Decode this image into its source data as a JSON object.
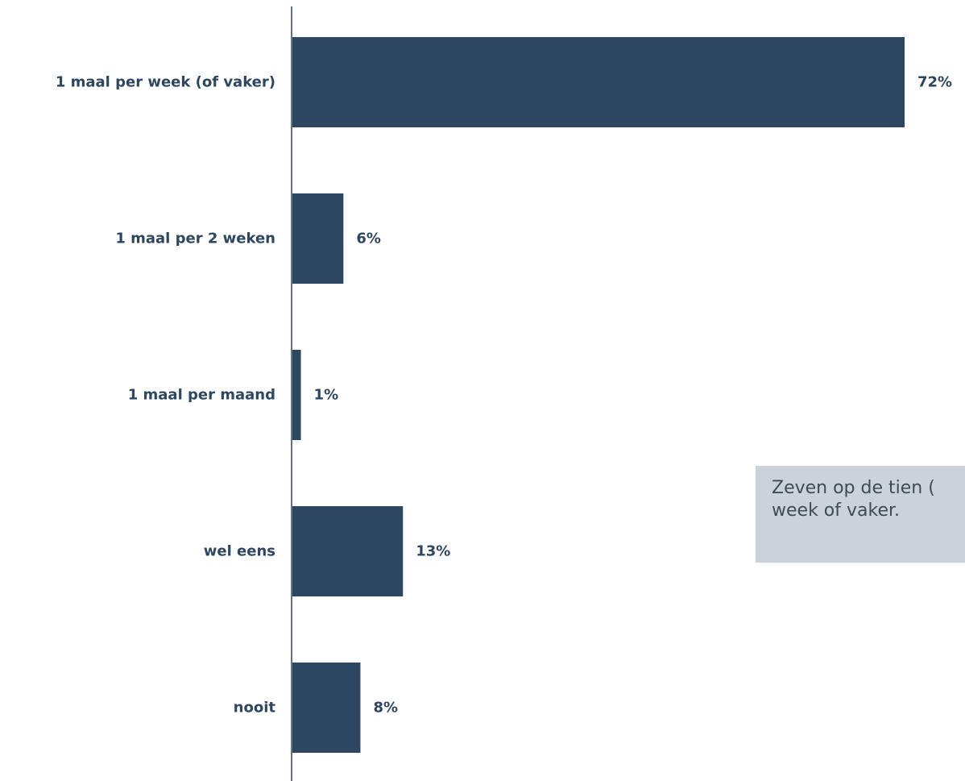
{
  "chart_data": {
    "type": "bar",
    "orientation": "horizontal",
    "categories": [
      "1 maal per week (of vaker)",
      "1 maal per 2 weken",
      "1 maal per maand",
      "wel eens",
      "nooit"
    ],
    "values": [
      72,
      6,
      1,
      13,
      8
    ],
    "value_labels": [
      "72%",
      "6%",
      "1%",
      "13%",
      "8%"
    ],
    "unit": "%",
    "xlim": [
      0,
      72
    ],
    "grid": false,
    "legend": "none",
    "bar_color": "#2d4661",
    "label_color": "#2d4661",
    "annotation": "Zeven op de tien (\nweek of vaker."
  },
  "callout": {
    "text": "Zeven op de tien (\nweek of vaker.",
    "background": "#ccd2da",
    "text_color": "#404a57"
  }
}
